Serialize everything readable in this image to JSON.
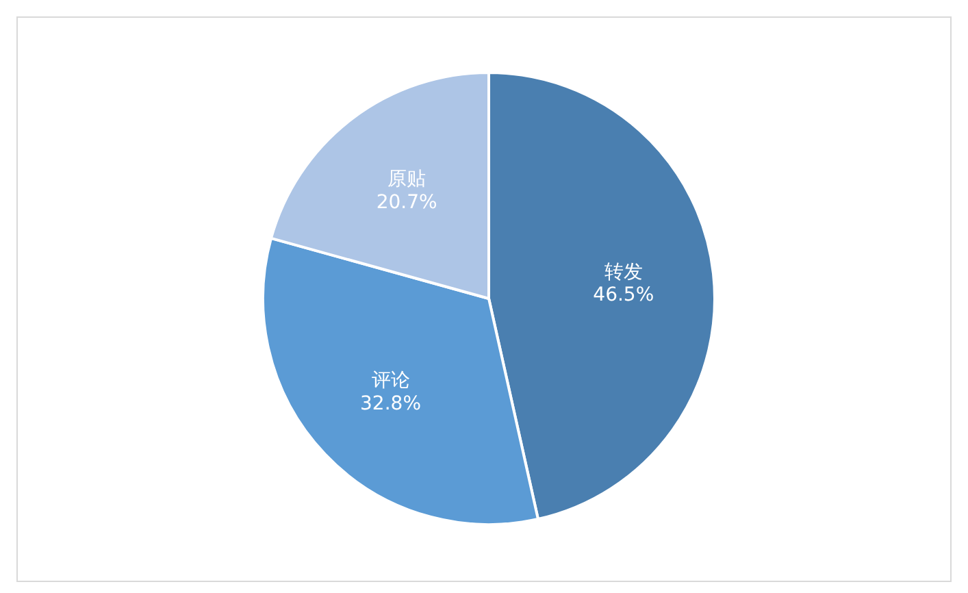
{
  "chart_data": {
    "type": "pie",
    "categories": [
      "转发",
      "评论",
      "原贴"
    ],
    "values": [
      46.5,
      32.8,
      20.7
    ],
    "colors": [
      "#4a7fb0",
      "#5b9bd5",
      "#adc5e6"
    ],
    "value_labels": [
      "46.5%",
      "32.8%",
      "20.7%"
    ]
  }
}
